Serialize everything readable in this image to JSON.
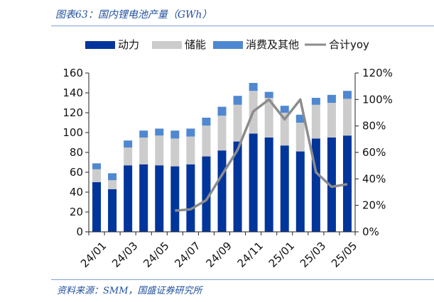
{
  "header": {
    "title": "图表63：国内锂电池产量（GWh）"
  },
  "footer": {
    "source": "资料来源：SMM，国盛证券研究所"
  },
  "chart_data": {
    "type": "bar",
    "stacked": true,
    "title": "图表63：国内锂电池产量（GWh）",
    "categories": [
      "24/01",
      "24/02",
      "24/03",
      "24/04",
      "24/05",
      "24/06",
      "24/07",
      "24/08",
      "24/09",
      "24/10",
      "24/11",
      "24/12",
      "25/01",
      "25/02",
      "25/03",
      "25/04",
      "25/05"
    ],
    "tick_labels": [
      "24/01",
      "24/03",
      "24/05",
      "24/07",
      "24/09",
      "24/11",
      "25/01",
      "25/03",
      "25/05"
    ],
    "series": [
      {
        "name": "动力",
        "color": "#00359b",
        "values": [
          50,
          43,
          67,
          68,
          67,
          66,
          68,
          76,
          82,
          91,
          99,
          95,
          87,
          81,
          94,
          95,
          97
        ]
      },
      {
        "name": "储能",
        "color": "#cccccc",
        "values": [
          13,
          9,
          18,
          27,
          30,
          28,
          28,
          31,
          35,
          37,
          43,
          40,
          33,
          29,
          34,
          35,
          37
        ]
      },
      {
        "name": "消费及其他",
        "color": "#4f88d0",
        "values": [
          6,
          7,
          7,
          7,
          7,
          8,
          8,
          8,
          9,
          9,
          8,
          6,
          7,
          8,
          7,
          8,
          8
        ]
      },
      {
        "name": "合计yoy",
        "type": "line",
        "axis": "right",
        "color": "#8c8c8c",
        "values": [
          null,
          null,
          null,
          null,
          null,
          16,
          17,
          24,
          43,
          62,
          91,
          100,
          85,
          100,
          45,
          34,
          36
        ]
      }
    ],
    "ylim": [
      0,
      160
    ],
    "yticks": [
      0,
      20,
      40,
      60,
      80,
      100,
      120,
      140,
      160
    ],
    "y2lim": [
      0,
      120
    ],
    "y2ticks": [
      "0%",
      "20%",
      "40%",
      "60%",
      "80%",
      "100%",
      "120%"
    ],
    "legend_position": "top"
  }
}
